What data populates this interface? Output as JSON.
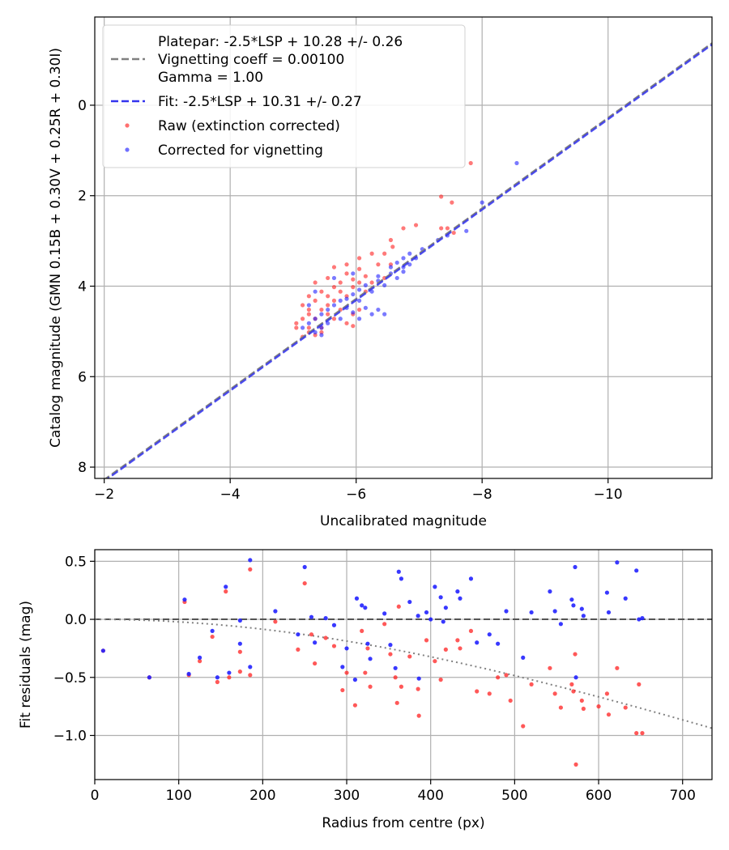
{
  "chart_data": [
    {
      "type": "scatter",
      "xlabel": "Uncalibrated magnitude",
      "ylabel": "Catalog magnitude (GMN 0.15B + 0.30V + 0.25R + 0.30I)",
      "xlim": [
        -1.85,
        -11.65
      ],
      "ylim": [
        8.25,
        -1.95
      ],
      "x_ticks": [
        -2,
        -4,
        -6,
        -8,
        -10
      ],
      "x_tick_labels": [
        "−2",
        "−4",
        "−6",
        "−8",
        "−10"
      ],
      "y_ticks": [
        0,
        2,
        4,
        6,
        8
      ],
      "y_tick_labels": [
        "0",
        "2",
        "4",
        "6",
        "8"
      ],
      "grid": true,
      "legend": {
        "placement": "top-left",
        "entries": [
          {
            "kind": "line",
            "style": "dashed",
            "color": "#808080",
            "lines": [
              "Platepar: -2.5*LSP + 10.28 +/- 0.26",
              "Vignetting coeff = 0.00100",
              "Gamma = 1.00"
            ]
          },
          {
            "kind": "line",
            "style": "dashed",
            "color": "#3333ee",
            "lines": [
              "Fit: -2.5*LSP + 10.31 +/- 0.27"
            ]
          },
          {
            "kind": "marker",
            "color": "#ff3333",
            "lines": [
              "Raw (extinction corrected)"
            ]
          },
          {
            "kind": "marker",
            "color": "#3333ff",
            "lines": [
              "Corrected for vignetting"
            ]
          }
        ]
      },
      "lines": [
        {
          "name": "Platepar",
          "slope": 1.0,
          "intercept": 10.28,
          "color": "#808080",
          "style": "dashed"
        },
        {
          "name": "Fit",
          "slope": 1.0,
          "intercept": 10.31,
          "color": "#3333ee",
          "style": "dashed"
        }
      ],
      "series": [
        {
          "name": "Raw (extinction corrected)",
          "color": "#ff2020",
          "points": [
            [
              -7.82,
              1.28
            ],
            [
              -7.35,
              2.02
            ],
            [
              -7.52,
              2.15
            ],
            [
              -7.35,
              2.72
            ],
            [
              -7.45,
              2.72
            ],
            [
              -7.55,
              2.82
            ],
            [
              -6.95,
              2.65
            ],
            [
              -6.75,
              2.72
            ],
            [
              -6.55,
              2.98
            ],
            [
              -6.58,
              3.13
            ],
            [
              -6.45,
              3.28
            ],
            [
              -6.25,
              3.28
            ],
            [
              -6.05,
              3.38
            ],
            [
              -6.35,
              3.52
            ],
            [
              -6.55,
              3.52
            ],
            [
              -6.05,
              3.62
            ],
            [
              -5.85,
              3.52
            ],
            [
              -5.65,
              3.58
            ],
            [
              -5.85,
              3.72
            ],
            [
              -6.15,
              3.78
            ],
            [
              -6.45,
              3.82
            ],
            [
              -5.55,
              3.82
            ],
            [
              -5.75,
              3.92
            ],
            [
              -5.35,
              3.92
            ],
            [
              -6.05,
              3.92
            ],
            [
              -5.95,
              4.02
            ],
            [
              -5.65,
              4.02
            ],
            [
              -5.45,
              4.12
            ],
            [
              -5.25,
              4.22
            ],
            [
              -5.55,
              4.22
            ],
            [
              -5.85,
              4.22
            ],
            [
              -6.15,
              4.12
            ],
            [
              -5.35,
              4.32
            ],
            [
              -5.65,
              4.32
            ],
            [
              -5.15,
              4.42
            ],
            [
              -5.45,
              4.52
            ],
            [
              -5.75,
              4.52
            ],
            [
              -5.25,
              4.62
            ],
            [
              -5.55,
              4.62
            ],
            [
              -5.95,
              4.62
            ],
            [
              -5.15,
              4.72
            ],
            [
              -5.35,
              4.72
            ],
            [
              -5.65,
              4.72
            ],
            [
              -5.85,
              4.82
            ],
            [
              -5.05,
              4.82
            ],
            [
              -5.25,
              4.92
            ],
            [
              -5.45,
              4.92
            ],
            [
              -5.05,
              4.92
            ],
            [
              -5.95,
              4.88
            ],
            [
              -5.25,
              5.02
            ],
            [
              -5.45,
              5.02
            ],
            [
              -5.15,
              5.12
            ],
            [
              -5.35,
              5.08
            ],
            [
              -6.05,
              4.52
            ],
            [
              -5.75,
              4.12
            ],
            [
              -6.25,
              3.92
            ],
            [
              -5.95,
              3.85
            ],
            [
              -5.55,
              4.42
            ],
            [
              -5.25,
              4.52
            ]
          ]
        },
        {
          "name": "Corrected for vignetting",
          "color": "#2222ff",
          "points": [
            [
              -8.55,
              1.28
            ],
            [
              -8.0,
              2.15
            ],
            [
              -7.75,
              2.78
            ],
            [
              -7.45,
              2.88
            ],
            [
              -7.3,
              2.98
            ],
            [
              -7.05,
              3.18
            ],
            [
              -6.85,
              3.28
            ],
            [
              -6.75,
              3.38
            ],
            [
              -6.95,
              3.38
            ],
            [
              -6.65,
              3.48
            ],
            [
              -6.55,
              3.58
            ],
            [
              -6.75,
              3.68
            ],
            [
              -6.55,
              3.72
            ],
            [
              -6.35,
              3.78
            ],
            [
              -6.35,
              3.88
            ],
            [
              -6.15,
              3.98
            ],
            [
              -6.05,
              4.08
            ],
            [
              -5.95,
              4.18
            ],
            [
              -6.25,
              4.12
            ],
            [
              -5.85,
              4.28
            ],
            [
              -5.75,
              4.32
            ],
            [
              -6.05,
              4.32
            ],
            [
              -5.65,
              4.42
            ],
            [
              -5.85,
              4.48
            ],
            [
              -6.15,
              4.48
            ],
            [
              -5.55,
              4.52
            ],
            [
              -5.95,
              4.58
            ],
            [
              -5.45,
              4.62
            ],
            [
              -6.25,
              4.62
            ],
            [
              -5.35,
              4.72
            ],
            [
              -5.75,
              4.72
            ],
            [
              -6.05,
              4.72
            ],
            [
              -5.25,
              4.82
            ],
            [
              -5.55,
              4.82
            ],
            [
              -5.45,
              4.92
            ],
            [
              -5.15,
              4.92
            ],
            [
              -5.35,
              5.02
            ],
            [
              -5.45,
              5.08
            ],
            [
              -6.35,
              4.52
            ],
            [
              -6.45,
              4.62
            ],
            [
              -6.85,
              3.52
            ],
            [
              -6.65,
              3.82
            ],
            [
              -5.95,
              3.72
            ],
            [
              -5.65,
              3.82
            ],
            [
              -6.45,
              3.98
            ],
            [
              -5.35,
              4.12
            ],
            [
              -5.25,
              4.42
            ],
            [
              -6.75,
              3.58
            ]
          ]
        }
      ]
    },
    {
      "type": "scatter",
      "xlabel": "Radius from centre (px)",
      "ylabel": "Fit residuals (mag)",
      "xlim": [
        0,
        735
      ],
      "ylim": [
        -1.38,
        0.6
      ],
      "x_ticks": [
        0,
        100,
        200,
        300,
        400,
        500,
        600,
        700
      ],
      "x_tick_labels": [
        "0",
        "100",
        "200",
        "300",
        "400",
        "500",
        "600",
        "700"
      ],
      "y_ticks": [
        0.5,
        0.0,
        -0.5,
        -1.0
      ],
      "y_tick_labels": [
        "0.5",
        "0.0",
        "−0.5",
        "−1.0"
      ],
      "grid": true,
      "zero_line": {
        "y": 0,
        "color": "#555555",
        "style": "dashed"
      },
      "vignetting_curve": {
        "coeff": 0.001,
        "color": "#808080",
        "style": "dotted",
        "x_range": [
          0,
          735
        ]
      },
      "series": [
        {
          "name": "Raw (extinction corrected)",
          "color": "#ff2020",
          "points": [
            [
              10,
              -0.27
            ],
            [
              65,
              -0.5
            ],
            [
              107,
              0.15
            ],
            [
              112,
              -0.48
            ],
            [
              125,
              -0.36
            ],
            [
              140,
              -0.15
            ],
            [
              146,
              -0.54
            ],
            [
              156,
              0.24
            ],
            [
              160,
              -0.5
            ],
            [
              173,
              -0.28
            ],
            [
              173,
              -0.45
            ],
            [
              185,
              0.43
            ],
            [
              185,
              -0.48
            ],
            [
              215,
              -0.02
            ],
            [
              242,
              -0.26
            ],
            [
              250,
              0.31
            ],
            [
              258,
              -0.13
            ],
            [
              262,
              -0.38
            ],
            [
              275,
              -0.16
            ],
            [
              285,
              -0.23
            ],
            [
              295,
              -0.61
            ],
            [
              300,
              -0.46
            ],
            [
              310,
              -0.74
            ],
            [
              318,
              -0.1
            ],
            [
              322,
              -0.46
            ],
            [
              325,
              -0.25
            ],
            [
              328,
              -0.58
            ],
            [
              345,
              -0.04
            ],
            [
              352,
              -0.3
            ],
            [
              358,
              -0.5
            ],
            [
              360,
              -0.72
            ],
            [
              362,
              0.11
            ],
            [
              365,
              -0.58
            ],
            [
              375,
              -0.32
            ],
            [
              385,
              -0.6
            ],
            [
              386,
              -0.83
            ],
            [
              395,
              -0.18
            ],
            [
              405,
              -0.36
            ],
            [
              412,
              -0.52
            ],
            [
              418,
              -0.26
            ],
            [
              432,
              -0.18
            ],
            [
              435,
              -0.25
            ],
            [
              448,
              -0.1
            ],
            [
              455,
              -0.62
            ],
            [
              470,
              -0.64
            ],
            [
              480,
              -0.5
            ],
            [
              490,
              -0.48
            ],
            [
              495,
              -0.7
            ],
            [
              510,
              -0.92
            ],
            [
              520,
              -0.56
            ],
            [
              542,
              -0.42
            ],
            [
              548,
              -0.64
            ],
            [
              555,
              -0.76
            ],
            [
              568,
              -0.56
            ],
            [
              570,
              -0.62
            ],
            [
              572,
              -0.3
            ],
            [
              573,
              -1.25
            ],
            [
              580,
              -0.7
            ],
            [
              582,
              -0.77
            ],
            [
              600,
              -0.75
            ],
            [
              610,
              -0.64
            ],
            [
              612,
              -0.82
            ],
            [
              622,
              -0.42
            ],
            [
              632,
              -0.76
            ],
            [
              645,
              -0.98
            ],
            [
              648,
              -0.56
            ],
            [
              652,
              -0.98
            ]
          ]
        },
        {
          "name": "Corrected for vignetting",
          "color": "#2222ff",
          "points": [
            [
              10,
              -0.27
            ],
            [
              65,
              -0.5
            ],
            [
              107,
              0.17
            ],
            [
              112,
              -0.47
            ],
            [
              125,
              -0.33
            ],
            [
              140,
              -0.1
            ],
            [
              146,
              -0.5
            ],
            [
              156,
              0.28
            ],
            [
              160,
              -0.46
            ],
            [
              173,
              -0.01
            ],
            [
              173,
              -0.21
            ],
            [
              185,
              0.51
            ],
            [
              185,
              -0.41
            ],
            [
              215,
              0.07
            ],
            [
              242,
              -0.13
            ],
            [
              250,
              0.45
            ],
            [
              258,
              0.02
            ],
            [
              262,
              -0.2
            ],
            [
              275,
              0.01
            ],
            [
              285,
              -0.05
            ],
            [
              295,
              -0.41
            ],
            [
              300,
              -0.25
            ],
            [
              310,
              -0.52
            ],
            [
              312,
              0.18
            ],
            [
              318,
              0.12
            ],
            [
              322,
              0.1
            ],
            [
              325,
              -0.21
            ],
            [
              328,
              -0.34
            ],
            [
              345,
              0.05
            ],
            [
              352,
              -0.22
            ],
            [
              358,
              -0.42
            ],
            [
              362,
              0.41
            ],
            [
              365,
              0.35
            ],
            [
              375,
              0.15
            ],
            [
              385,
              0.03
            ],
            [
              386,
              -0.51
            ],
            [
              395,
              0.06
            ],
            [
              405,
              0.28
            ],
            [
              412,
              0.19
            ],
            [
              418,
              0.1
            ],
            [
              432,
              0.24
            ],
            [
              435,
              0.18
            ],
            [
              448,
              0.35
            ],
            [
              455,
              -0.2
            ],
            [
              470,
              -0.13
            ],
            [
              480,
              -0.21
            ],
            [
              490,
              0.07
            ],
            [
              510,
              -0.33
            ],
            [
              520,
              0.06
            ],
            [
              542,
              0.24
            ],
            [
              548,
              0.07
            ],
            [
              555,
              -0.04
            ],
            [
              568,
              0.17
            ],
            [
              570,
              0.12
            ],
            [
              572,
              0.45
            ],
            [
              573,
              -0.5
            ],
            [
              580,
              0.09
            ],
            [
              582,
              0.03
            ],
            [
              610,
              0.23
            ],
            [
              612,
              0.06
            ],
            [
              622,
              0.49
            ],
            [
              632,
              0.18
            ],
            [
              645,
              0.42
            ],
            [
              648,
              0.0
            ],
            [
              652,
              0.01
            ],
            [
              400,
              0.0
            ],
            [
              415,
              -0.02
            ]
          ]
        }
      ]
    }
  ]
}
